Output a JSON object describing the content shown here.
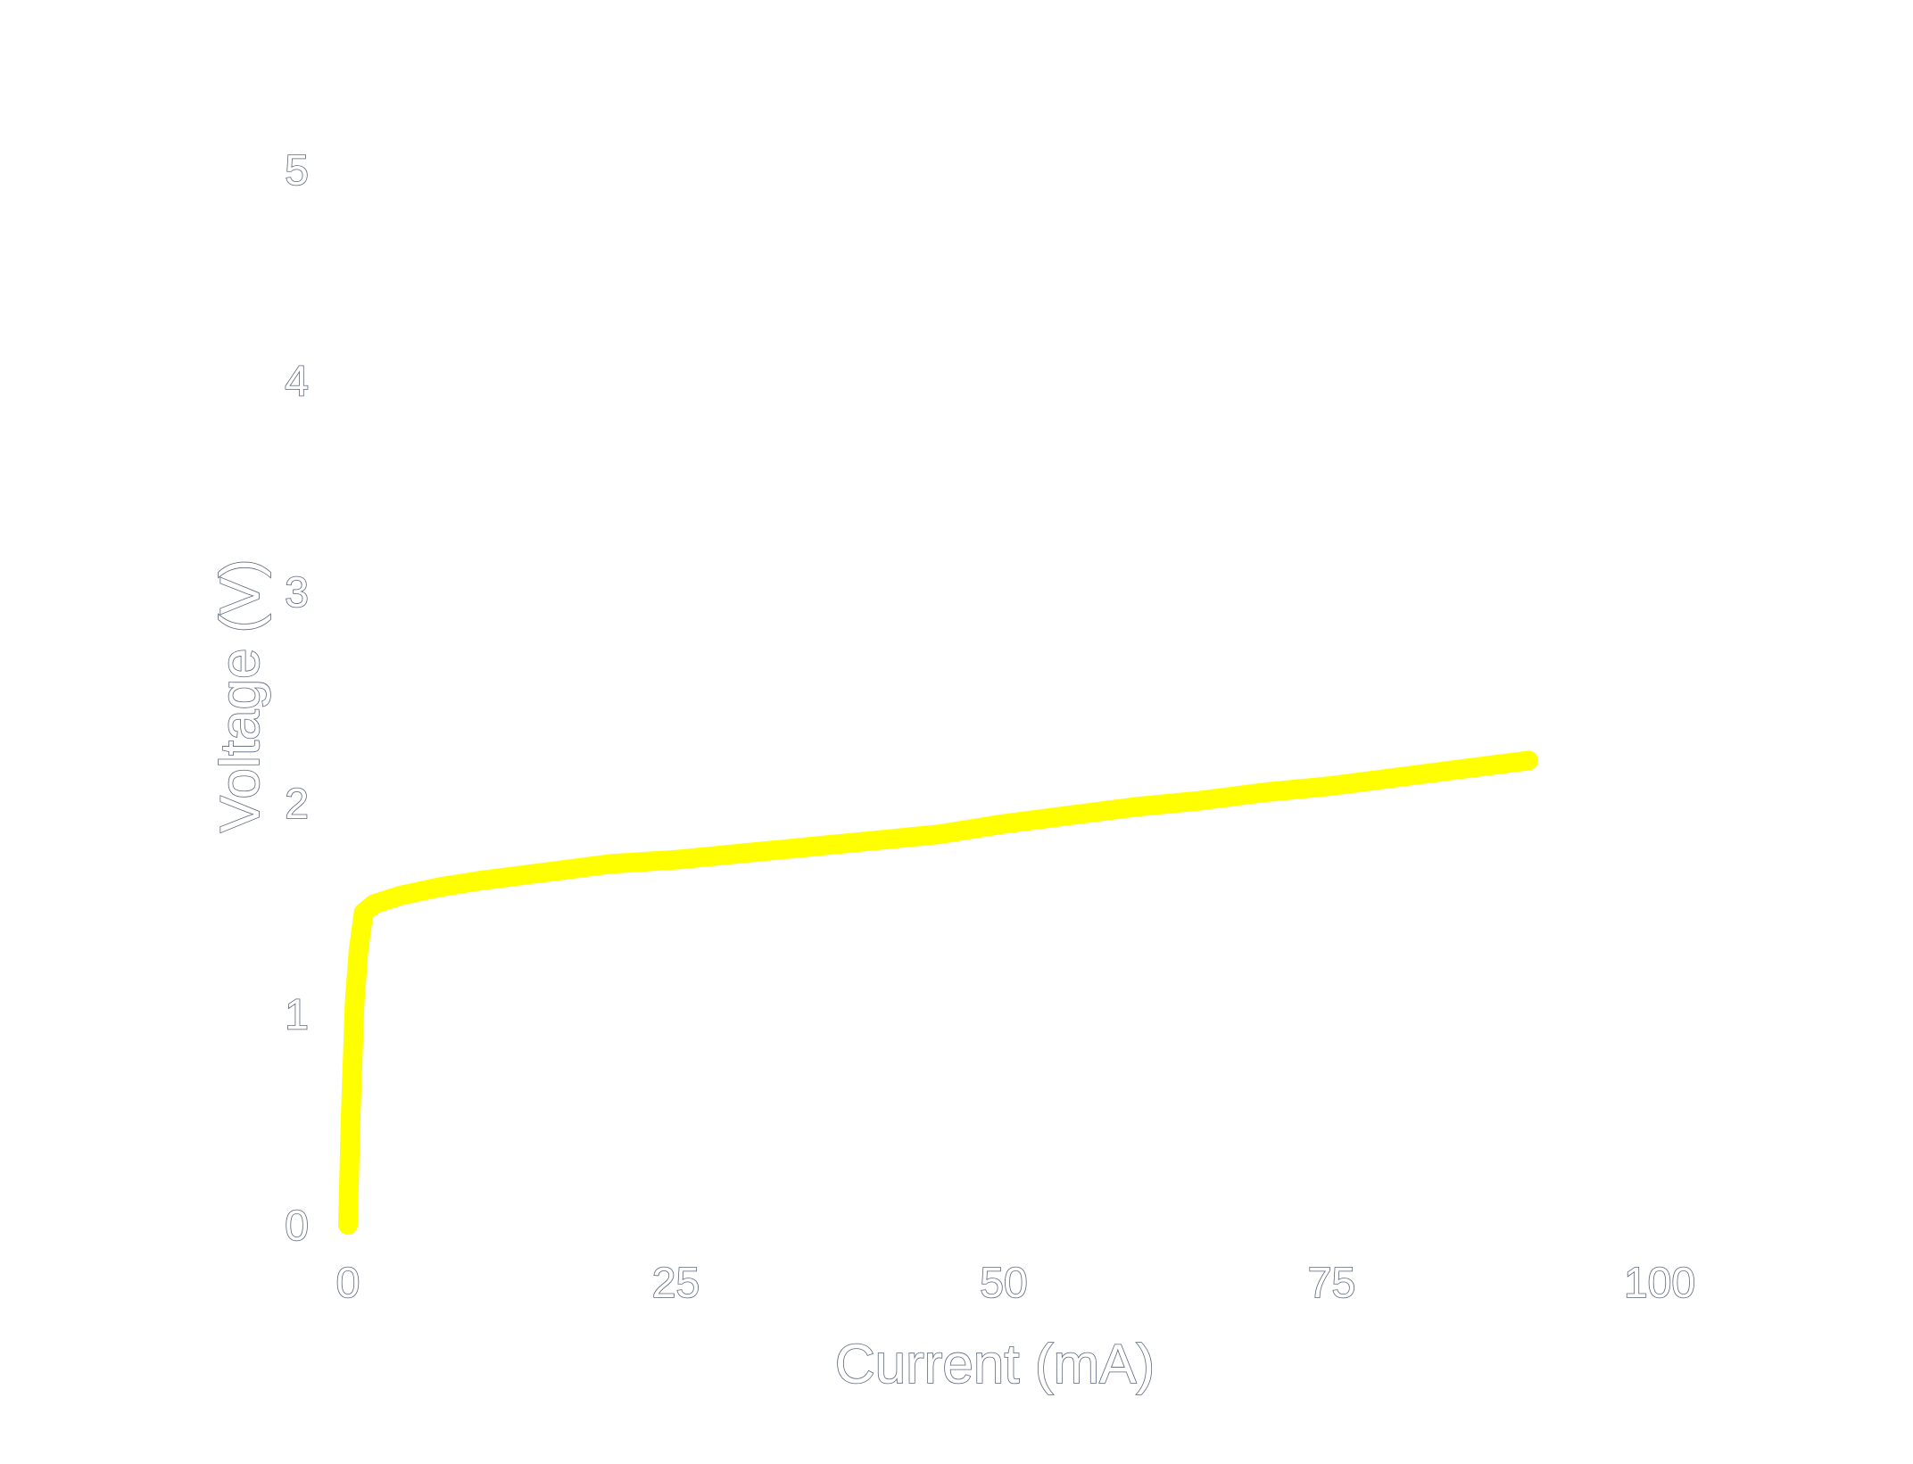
{
  "chart_data": {
    "type": "line",
    "title": "",
    "xlabel": "Current (mA)",
    "ylabel": "Voltage (V)",
    "xlim": [
      0,
      100
    ],
    "ylim": [
      0,
      5
    ],
    "xticks": [
      "0",
      "25",
      "50",
      "75",
      "100"
    ],
    "yticks": [
      "0",
      "1",
      "2",
      "3",
      "4",
      "5"
    ],
    "grid": false,
    "line_color": "#ffff00",
    "series": [
      {
        "x": [
          0,
          0.2,
          0.5,
          0.8,
          1.2,
          2,
          4,
          7,
          10,
          15,
          20,
          25,
          30,
          35,
          40,
          45,
          50,
          55,
          60,
          65,
          70,
          75,
          80,
          85,
          90
        ],
        "y": [
          0,
          0.5,
          1.05,
          1.3,
          1.48,
          1.52,
          1.56,
          1.6,
          1.63,
          1.67,
          1.71,
          1.73,
          1.76,
          1.79,
          1.82,
          1.85,
          1.9,
          1.94,
          1.98,
          2.01,
          2.05,
          2.08,
          2.12,
          2.16,
          2.2
        ]
      }
    ]
  }
}
